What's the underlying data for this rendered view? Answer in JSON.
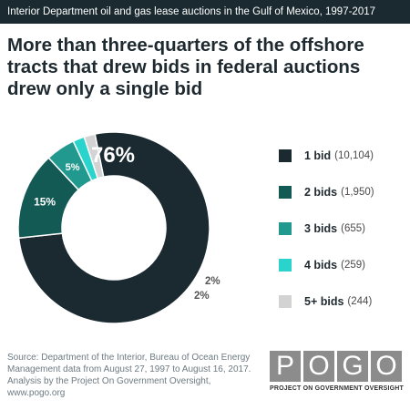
{
  "header": {
    "banner": "Interior Department oil and gas lease auctions in the Gulf of Mexico, 1997-2017",
    "headline": "More than three-quarters of the offshore tracts that drew bids in federal auctions drew only a single bid"
  },
  "chart_data": {
    "type": "pie",
    "donut": true,
    "categories": [
      "1 bid",
      "2 bids",
      "3 bids",
      "4 bids",
      "5+ bids"
    ],
    "values": [
      10104,
      1950,
      655,
      259,
      244
    ],
    "counts_text": [
      "(10,104)",
      "(1,950)",
      "(655)",
      "(259)",
      "(244)"
    ],
    "percent_labels": [
      "76%",
      "15%",
      "5%",
      "2%",
      "2%"
    ],
    "colors": [
      "#1b2a31",
      "#135a55",
      "#22998f",
      "#2ad4cc",
      "#d3d3d3"
    ],
    "legend_position": "right"
  },
  "footer": {
    "source": "Source: Department of the Interior, Bureau of Ocean Energy Management data from August 27, 1997 to August 16, 2017. Analysis by the Project On Government Oversight, www.pogo.org"
  },
  "logo": {
    "letters": [
      "P",
      "O",
      "G",
      "O"
    ],
    "tagline": "PROJECT ON GOVERNMENT OVERSIGHT"
  }
}
